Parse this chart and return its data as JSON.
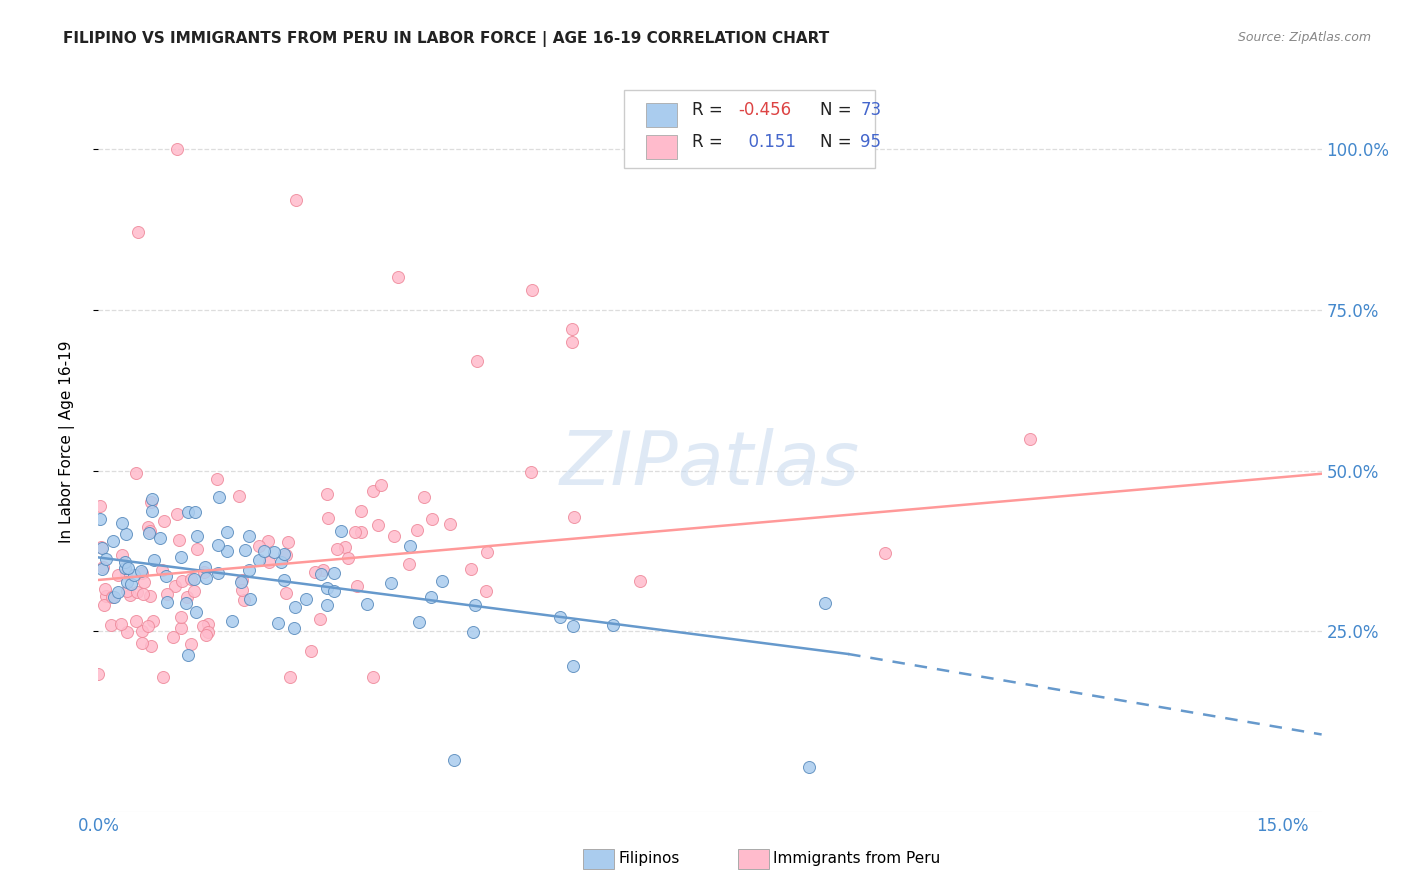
{
  "title": "FILIPINO VS IMMIGRANTS FROM PERU IN LABOR FORCE | AGE 16-19 CORRELATION CHART",
  "source": "Source: ZipAtlas.com",
  "ylabel": "In Labor Force | Age 16-19",
  "blue_line_color": "#6699cc",
  "pink_line_color": "#ff9999",
  "blue_fill": "#aaccee",
  "pink_fill": "#ffbbcc",
  "blue_edge": "#5588bb",
  "pink_edge": "#ee8899",
  "watermark_color": "#c5d8ee",
  "grid_color": "#dddddd",
  "tick_color": "#4488cc",
  "title_color": "#222222",
  "source_color": "#888888",
  "R_neg_color": "#dd4444",
  "R_pos_color": "#4466cc",
  "N_color": "#4466cc",
  "legend_label_color": "#222222",
  "xlim_min": 0.0,
  "xlim_max": 0.155,
  "ylim_min": -0.03,
  "ylim_max": 1.12,
  "ytick_positions": [
    0.25,
    0.5,
    0.75,
    1.0
  ],
  "ytick_labels": [
    "25.0%",
    "50.0%",
    "75.0%",
    "100.0%"
  ],
  "xtick_positions": [
    0.0,
    0.15
  ],
  "xtick_labels": [
    "0.0%",
    "15.0%"
  ],
  "filipino_trend_x0": 0.0,
  "filipino_trend_y0": 0.365,
  "filipino_trend_x1": 0.095,
  "filipino_trend_y1": 0.215,
  "filipino_trend_dash_x1": 0.155,
  "filipino_trend_dash_y1": 0.09,
  "peru_trend_x0": 0.0,
  "peru_trend_y0": 0.33,
  "peru_trend_x1": 0.155,
  "peru_trend_y1": 0.495,
  "legend_R1": "-0.456",
  "legend_N1": "73",
  "legend_R2": "0.151",
  "legend_N2": "95"
}
